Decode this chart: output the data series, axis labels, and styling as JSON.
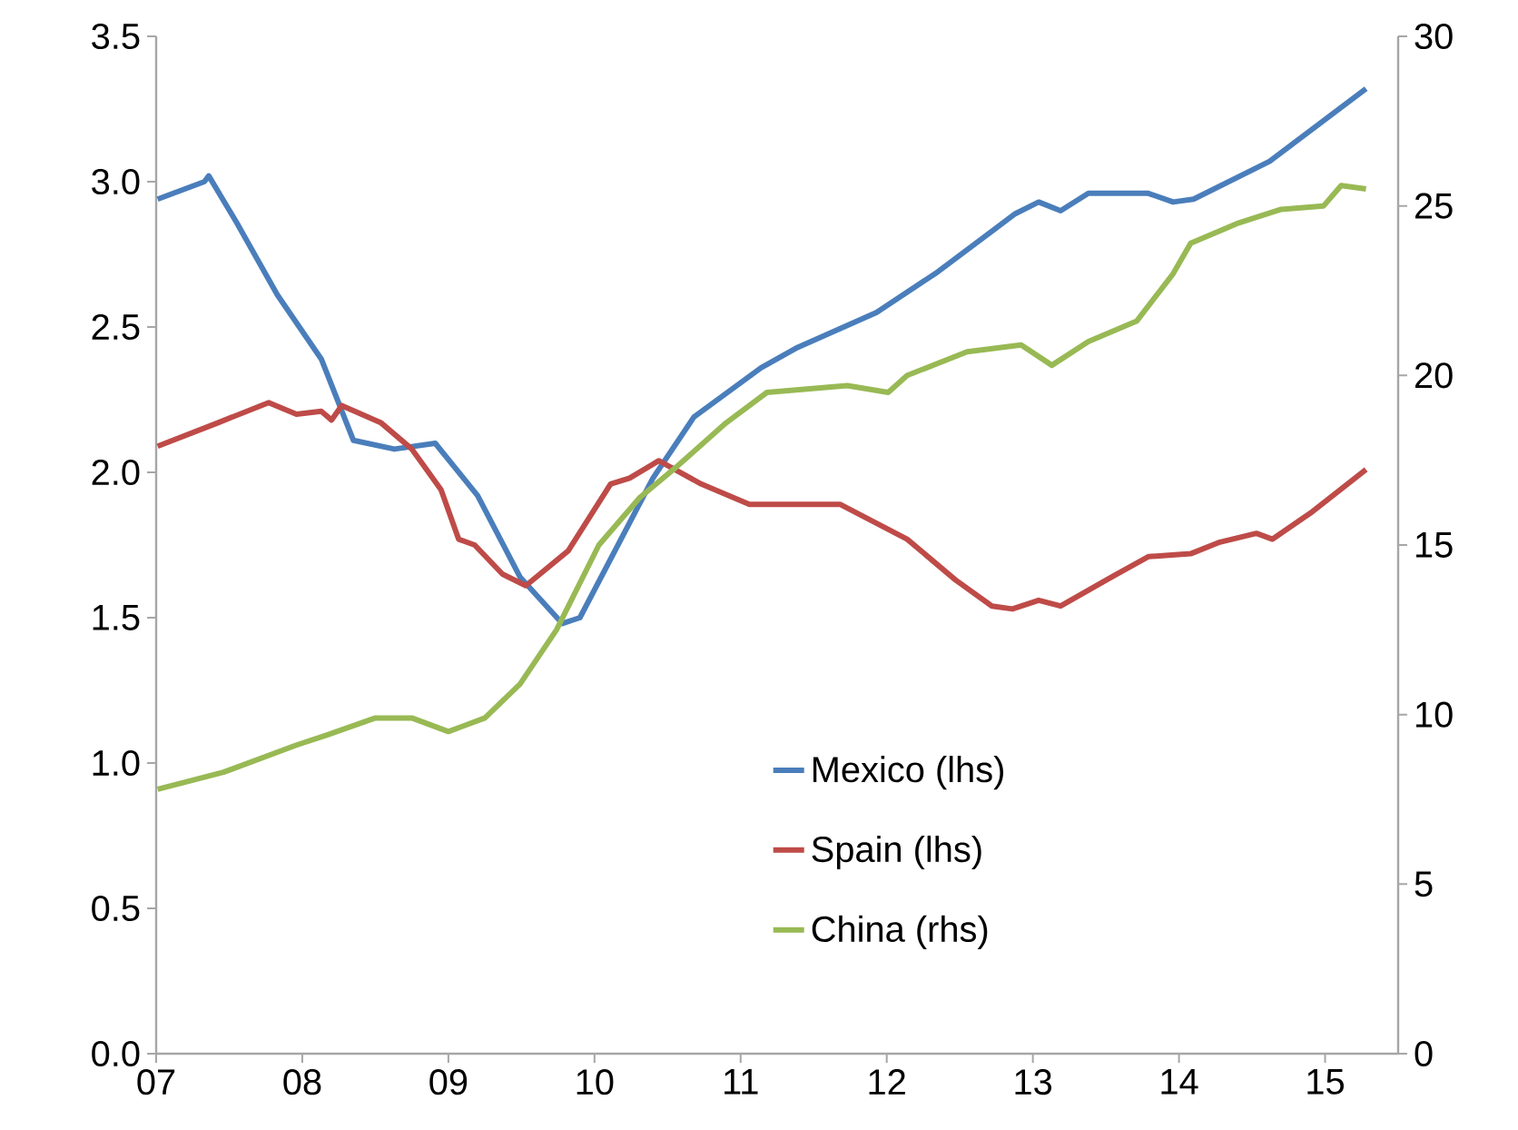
{
  "chart_data": {
    "type": "line",
    "xlim": [
      2007,
      2015.5
    ],
    "xticks": [
      {
        "value": 2007,
        "label": "07"
      },
      {
        "value": 2008,
        "label": "08"
      },
      {
        "value": 2009,
        "label": "09"
      },
      {
        "value": 2010,
        "label": "10"
      },
      {
        "value": 2011,
        "label": "11"
      },
      {
        "value": 2012,
        "label": "12"
      },
      {
        "value": 2013,
        "label": "13"
      },
      {
        "value": 2014,
        "label": "14"
      },
      {
        "value": 2015,
        "label": "15"
      }
    ],
    "ylim": [
      0,
      3.5
    ],
    "yticks": [
      {
        "value": 0,
        "label": "0.0"
      },
      0.5,
      {
        "value": 1,
        "label": "1.0"
      },
      1.5,
      {
        "value": 2,
        "label": "2.0"
      },
      2.5,
      {
        "value": 3,
        "label": "3.0"
      },
      3.5
    ],
    "y2lim": [
      0,
      30
    ],
    "y2ticks": [
      0,
      5,
      10,
      15,
      20,
      25,
      30
    ],
    "legend": "bottom right",
    "line_style": "solid",
    "series": [
      {
        "name": "Mexico (lhs)",
        "color": "#4a7ebb",
        "x": [
          2007.01,
          2007.33,
          2007.36,
          2007.55,
          2007.83,
          2008.13,
          2008.35,
          2008.63,
          2008.91,
          2009.2,
          2009.49,
          2009.78,
          2009.9,
          2010.4,
          2010.68,
          2011.14,
          2011.39,
          2011.93,
          2012.35,
          2012.88,
          2013.04,
          2013.19,
          2013.38,
          2013.79,
          2013.96,
          2014.1,
          2014.62,
          2015.28
        ],
        "values": [
          2.94,
          3.0,
          3.02,
          2.86,
          2.61,
          2.39,
          2.11,
          2.08,
          2.1,
          1.92,
          1.64,
          1.48,
          1.5,
          1.98,
          2.19,
          2.36,
          2.43,
          2.55,
          2.69,
          2.89,
          2.93,
          2.9,
          2.96,
          2.96,
          2.93,
          2.94,
          3.07,
          3.32
        ]
      },
      {
        "name": "Spain (lhs)",
        "color": "#be4b48",
        "x": [
          2007.01,
          2007.42,
          2007.77,
          2007.96,
          2008.13,
          2008.2,
          2008.27,
          2008.54,
          2008.75,
          2008.95,
          2009.07,
          2009.18,
          2009.37,
          2009.53,
          2009.82,
          2010.11,
          2010.24,
          2010.44,
          2010.73,
          2011.06,
          2011.39,
          2011.68,
          2012.14,
          2012.47,
          2012.72,
          2012.86,
          2013.04,
          2013.19,
          2013.54,
          2013.79,
          2014.08,
          2014.28,
          2014.53,
          2014.64,
          2014.9,
          2015.28
        ],
        "values": [
          2.09,
          2.17,
          2.24,
          2.2,
          2.21,
          2.18,
          2.23,
          2.17,
          2.08,
          1.94,
          1.77,
          1.75,
          1.65,
          1.61,
          1.73,
          1.96,
          1.98,
          2.04,
          1.96,
          1.89,
          1.89,
          1.89,
          1.77,
          1.63,
          1.54,
          1.53,
          1.56,
          1.54,
          1.64,
          1.71,
          1.72,
          1.76,
          1.79,
          1.77,
          1.86,
          2.01
        ]
      },
      {
        "name": "China (rhs)",
        "color": "#98b954",
        "axis": "y2",
        "x": [
          2007.01,
          2007.46,
          2007.96,
          2008.17,
          2008.5,
          2008.75,
          2009.0,
          2009.25,
          2009.49,
          2009.74,
          2010.03,
          2010.31,
          2010.56,
          2010.9,
          2011.18,
          2011.73,
          2012.01,
          2012.14,
          2012.55,
          2012.92,
          2013.13,
          2013.38,
          2013.71,
          2013.96,
          2014.08,
          2014.41,
          2014.7,
          2014.99,
          2015.11,
          2015.28
        ],
        "values": [
          7.8,
          8.3,
          9.1,
          9.4,
          9.9,
          9.9,
          9.5,
          9.9,
          10.9,
          12.5,
          15.0,
          16.4,
          17.3,
          18.6,
          19.5,
          19.7,
          19.5,
          20.0,
          20.7,
          20.9,
          20.3,
          21.0,
          21.6,
          23.0,
          23.9,
          24.5,
          24.9,
          25.0,
          25.6,
          25.5
        ]
      }
    ]
  }
}
